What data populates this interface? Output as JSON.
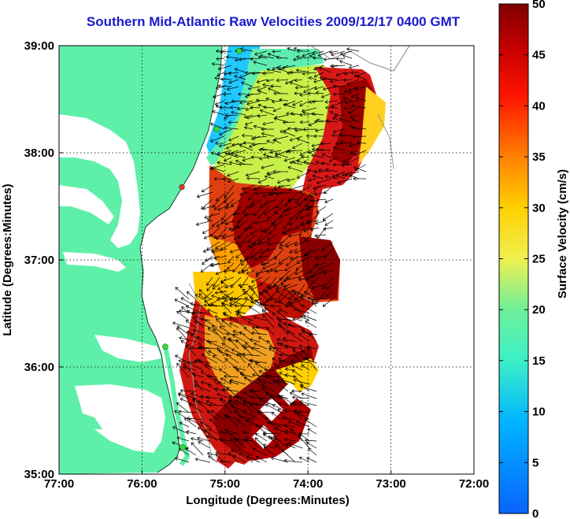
{
  "title": "Southern Mid-Atlantic Raw Velocities 2009/12/17 0400 GMT",
  "map": {
    "xlabel": "Longitude (Degrees:Minutes)",
    "ylabel": "Latitude (Degrees:Minutes)",
    "x_ticks": [
      {
        "value": -77,
        "label": "77:00"
      },
      {
        "value": -76,
        "label": "76:00"
      },
      {
        "value": -75,
        "label": "75:00"
      },
      {
        "value": -74,
        "label": "74:00"
      },
      {
        "value": -73,
        "label": "73:00"
      },
      {
        "value": -72,
        "label": "72:00"
      }
    ],
    "y_ticks": [
      {
        "value": 39,
        "label": "39:00"
      },
      {
        "value": 38,
        "label": "38:00"
      },
      {
        "value": 37,
        "label": "37:00"
      },
      {
        "value": 36,
        "label": "36:00"
      },
      {
        "value": 35,
        "label": "35:00"
      }
    ],
    "lon_range": [
      -77,
      -72
    ],
    "lat_range": [
      35,
      39
    ],
    "grid": "dotted",
    "land_color": "#5ef0a8",
    "sites": [
      {
        "lon": -74.83,
        "lat": 38.95,
        "color": "#33dd33"
      },
      {
        "lon": -75.1,
        "lat": 38.22,
        "color": "#33dd33"
      },
      {
        "lon": -75.52,
        "lat": 37.68,
        "color": "#dd3333"
      },
      {
        "lon": -75.72,
        "lat": 36.19,
        "color": "#33dd33"
      },
      {
        "lon": -75.51,
        "lat": 35.25,
        "color": "#33dd33"
      }
    ]
  },
  "colorbar": {
    "label": "Surface Velocity (cm/s)",
    "min": 0,
    "max": 50,
    "ticks": [
      {
        "value": 0,
        "label": "0"
      },
      {
        "value": 5,
        "label": "5"
      },
      {
        "value": 10,
        "label": "10"
      },
      {
        "value": 15,
        "label": "15"
      },
      {
        "value": 20,
        "label": "20"
      },
      {
        "value": 25,
        "label": "25"
      },
      {
        "value": 30,
        "label": "30"
      },
      {
        "value": 35,
        "label": "35"
      },
      {
        "value": 40,
        "label": "40"
      },
      {
        "value": 45,
        "label": "45"
      },
      {
        "value": 50,
        "label": "50"
      }
    ]
  },
  "chart_data": {
    "type": "heatmap",
    "title": "Southern Mid-Atlantic Raw Velocities 2009/12/17 0400 GMT",
    "xlabel": "Longitude (Degrees:Minutes)",
    "ylabel": "Latitude (Degrees:Minutes)",
    "xlim": [
      -77,
      -72
    ],
    "ylim": [
      35,
      39
    ],
    "colorbar_label": "Surface Velocity (cm/s)",
    "clim": [
      0,
      50
    ],
    "regions": [
      {
        "lon_range": [
          -75.1,
          -74.6
        ],
        "lat_range": [
          38.6,
          38.9
        ],
        "approx_speed": 12
      },
      {
        "lon_range": [
          -75.1,
          -74.2
        ],
        "lat_range": [
          38.0,
          38.6
        ],
        "approx_speed": 22
      },
      {
        "lon_range": [
          -74.6,
          -73.4
        ],
        "lat_range": [
          38.3,
          38.9
        ],
        "approx_speed": 45
      },
      {
        "lon_range": [
          -73.4,
          -73.0
        ],
        "lat_range": [
          38.2,
          38.6
        ],
        "approx_speed": 28
      },
      {
        "lon_range": [
          -75.2,
          -74.6
        ],
        "lat_range": [
          37.0,
          37.8
        ],
        "approx_speed": 42
      },
      {
        "lon_range": [
          -74.4,
          -73.9
        ],
        "lat_range": [
          36.8,
          37.5
        ],
        "approx_speed": 47
      },
      {
        "lon_range": [
          -75.1,
          -74.8
        ],
        "lat_range": [
          36.5,
          37.0
        ],
        "approx_speed": 28
      },
      {
        "lon_range": [
          -74.8,
          -74.1
        ],
        "lat_range": [
          35.4,
          36.5
        ],
        "approx_speed": 46
      }
    ]
  }
}
